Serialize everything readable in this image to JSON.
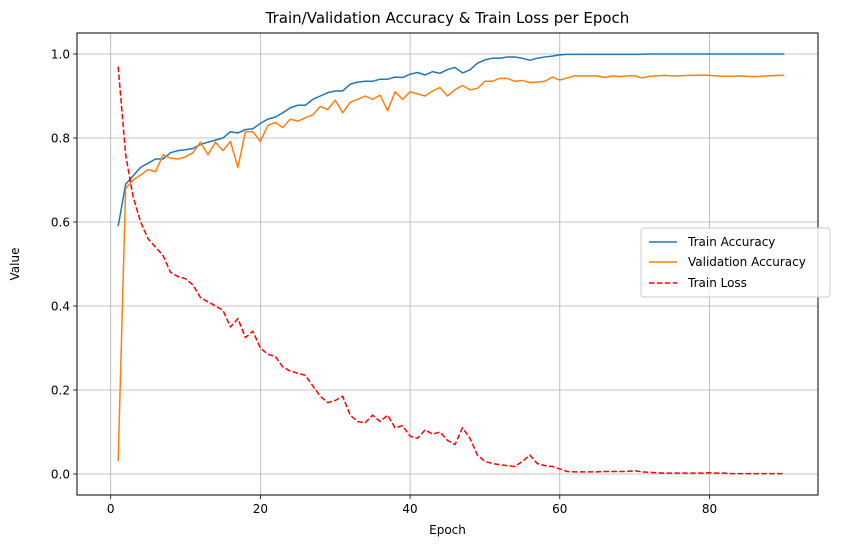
{
  "chart_data": {
    "type": "line",
    "title": "Train/Validation Accuracy & Train Loss per Epoch",
    "xlabel": "Epoch",
    "ylabel": "Value",
    "xlim": [
      -4.5,
      94.5
    ],
    "ylim": [
      -0.05,
      1.05
    ],
    "grid": true,
    "legend_position": "center-right",
    "x_ticks": [
      0,
      20,
      40,
      60,
      80
    ],
    "y_ticks": [
      0.0,
      0.2,
      0.4,
      0.6,
      0.8,
      1.0
    ],
    "x_tick_labels": [
      "0",
      "20",
      "40",
      "60",
      "80"
    ],
    "y_tick_labels": [
      "0.0",
      "0.2",
      "0.4",
      "0.6",
      "0.8",
      "1.0"
    ],
    "x": [
      1,
      2,
      3,
      4,
      5,
      6,
      7,
      8,
      9,
      10,
      11,
      12,
      13,
      14,
      15,
      16,
      17,
      18,
      19,
      20,
      21,
      22,
      23,
      24,
      25,
      26,
      27,
      28,
      29,
      30,
      31,
      32,
      33,
      34,
      35,
      36,
      37,
      38,
      39,
      40,
      41,
      42,
      43,
      44,
      45,
      46,
      47,
      48,
      49,
      50,
      51,
      52,
      53,
      54,
      55,
      56,
      57,
      58,
      59,
      60,
      61,
      62,
      63,
      64,
      65,
      66,
      67,
      68,
      69,
      70,
      71,
      72,
      73,
      74,
      75,
      76,
      77,
      78,
      79,
      80,
      81,
      82,
      83,
      84,
      85,
      86,
      87,
      88,
      89,
      90
    ],
    "series": [
      {
        "name": "Train Accuracy",
        "color": "#1f77b4",
        "dash": "solid",
        "values": [
          0.59,
          0.69,
          0.71,
          0.73,
          0.74,
          0.75,
          0.75,
          0.765,
          0.77,
          0.772,
          0.775,
          0.785,
          0.79,
          0.795,
          0.8,
          0.815,
          0.812,
          0.82,
          0.822,
          0.835,
          0.845,
          0.85,
          0.86,
          0.872,
          0.878,
          0.878,
          0.892,
          0.9,
          0.908,
          0.912,
          0.912,
          0.928,
          0.933,
          0.935,
          0.935,
          0.94,
          0.94,
          0.945,
          0.944,
          0.952,
          0.956,
          0.95,
          0.958,
          0.954,
          0.963,
          0.968,
          0.955,
          0.962,
          0.978,
          0.986,
          0.99,
          0.99,
          0.993,
          0.993,
          0.99,
          0.985,
          0.99,
          0.993,
          0.995,
          0.998,
          0.999,
          0.999,
          0.999,
          0.999,
          0.999,
          0.999,
          0.999,
          0.999,
          0.999,
          0.999,
          0.9995,
          1.0,
          1.0,
          1.0,
          1.0,
          1.0,
          1.0,
          1.0,
          1.0,
          1.0,
          1.0,
          1.0,
          1.0,
          1.0,
          1.0,
          1.0,
          1.0,
          1.0,
          1.0,
          1.0
        ]
      },
      {
        "name": "Validation Accuracy",
        "color": "#ff7f0e",
        "dash": "solid",
        "values": [
          0.03,
          0.68,
          0.7,
          0.712,
          0.725,
          0.72,
          0.76,
          0.752,
          0.75,
          0.755,
          0.765,
          0.79,
          0.76,
          0.79,
          0.77,
          0.792,
          0.73,
          0.815,
          0.815,
          0.792,
          0.83,
          0.837,
          0.825,
          0.845,
          0.84,
          0.848,
          0.855,
          0.875,
          0.868,
          0.89,
          0.86,
          0.885,
          0.892,
          0.9,
          0.892,
          0.902,
          0.865,
          0.91,
          0.892,
          0.91,
          0.905,
          0.9,
          0.912,
          0.92,
          0.9,
          0.915,
          0.925,
          0.915,
          0.918,
          0.935,
          0.935,
          0.942,
          0.942,
          0.935,
          0.937,
          0.932,
          0.933,
          0.935,
          0.945,
          0.938,
          0.943,
          0.948,
          0.948,
          0.948,
          0.948,
          0.944,
          0.948,
          0.946,
          0.948,
          0.948,
          0.943,
          0.947,
          0.948,
          0.949,
          0.948,
          0.948,
          0.949,
          0.949,
          0.95,
          0.949,
          0.948,
          0.947,
          0.947,
          0.948,
          0.947,
          0.946,
          0.947,
          0.948,
          0.949,
          0.949
        ]
      },
      {
        "name": "Train Loss",
        "color": "#ff0000",
        "dash": "dashed",
        "values": [
          0.97,
          0.76,
          0.66,
          0.6,
          0.56,
          0.54,
          0.52,
          0.48,
          0.47,
          0.465,
          0.45,
          0.42,
          0.41,
          0.4,
          0.39,
          0.35,
          0.37,
          0.325,
          0.34,
          0.3,
          0.285,
          0.28,
          0.255,
          0.245,
          0.24,
          0.235,
          0.21,
          0.185,
          0.17,
          0.175,
          0.185,
          0.14,
          0.125,
          0.122,
          0.14,
          0.125,
          0.14,
          0.11,
          0.115,
          0.09,
          0.085,
          0.105,
          0.095,
          0.1,
          0.08,
          0.07,
          0.11,
          0.085,
          0.045,
          0.03,
          0.025,
          0.022,
          0.02,
          0.018,
          0.03,
          0.045,
          0.025,
          0.02,
          0.018,
          0.012,
          0.006,
          0.005,
          0.005,
          0.005,
          0.005,
          0.006,
          0.006,
          0.006,
          0.006,
          0.008,
          0.005,
          0.004,
          0.003,
          0.002,
          0.002,
          0.002,
          0.002,
          0.002,
          0.002,
          0.003,
          0.002,
          0.002,
          0.001,
          0.001,
          0.001,
          0.001,
          0.001,
          0.001,
          0.001,
          0.001
        ]
      }
    ]
  }
}
